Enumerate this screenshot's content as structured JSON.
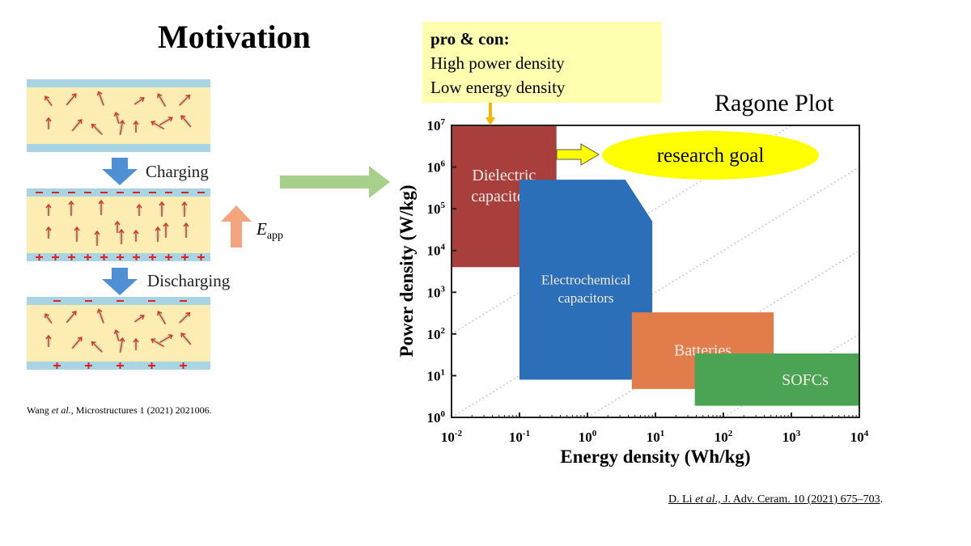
{
  "slide": {
    "title": "Motivation",
    "procon": {
      "heading": "pro & con:",
      "line1": "High power density",
      "line2": "Low energy density"
    },
    "chart_heading": "Ragone Plot",
    "research_goal": "research goal",
    "citation_left": {
      "authors": "Wang ",
      "etal": "et al.",
      "rest": ", Microstructures  1 (2021) 2021006."
    },
    "citation_right": {
      "authors": "D. Li ",
      "etal": "et al",
      "rest": "., J. Adv. Ceram. 10 (2021) 675–703",
      "end": "."
    }
  },
  "schematic": {
    "charging_label": "Charging",
    "discharging_label": "Discharging",
    "field_label": "E",
    "field_subscript": "app",
    "colors": {
      "electrode": "#a9d4e4",
      "dielectric": "#fdedb3",
      "dipole": "#d23a2a",
      "process_arrow": "#4f8fd6",
      "field_arrow": "#f4a57e",
      "charge": "#e02020"
    }
  },
  "chart_data": {
    "type": "area",
    "xlabel": "Energy density (Wh/kg)",
    "ylabel": "Power density (W/kg)",
    "xscale": "log",
    "yscale": "log",
    "xlim": [
      0.01,
      10000
    ],
    "ylim": [
      1,
      10000000
    ],
    "xticks": [
      {
        "base": "10",
        "exp": "-2"
      },
      {
        "base": "10",
        "exp": "-1"
      },
      {
        "base": "10",
        "exp": "0"
      },
      {
        "base": "10",
        "exp": "1"
      },
      {
        "base": "10",
        "exp": "2"
      },
      {
        "base": "10",
        "exp": "3"
      },
      {
        "base": "10",
        "exp": "4"
      }
    ],
    "yticks": [
      {
        "base": "10",
        "exp": "0"
      },
      {
        "base": "10",
        "exp": "1"
      },
      {
        "base": "10",
        "exp": "2"
      },
      {
        "base": "10",
        "exp": "3"
      },
      {
        "base": "10",
        "exp": "4"
      },
      {
        "base": "10",
        "exp": "5"
      },
      {
        "base": "10",
        "exp": "6"
      },
      {
        "base": "10",
        "exp": "7"
      }
    ],
    "grid": false,
    "reference_lines_power_to_energy": [
      10000,
      100,
      1,
      0.01
    ],
    "regions": [
      {
        "name": "Dielectric",
        "name2": "capacitors",
        "color": "#a83f3c",
        "polygon": [
          [
            0.01,
            10000000
          ],
          [
            0.35,
            10000000
          ],
          [
            0.35,
            4000
          ],
          [
            0.01,
            4000
          ]
        ]
      },
      {
        "name": "Electrochemical",
        "name2": "capacitors",
        "color": "#2a6fb8",
        "polygon": [
          [
            0.1,
            500000
          ],
          [
            3.6,
            500000
          ],
          [
            9,
            50000
          ],
          [
            9,
            8
          ],
          [
            0.1,
            8
          ]
        ]
      },
      {
        "name": "Batteries",
        "name2": "",
        "color": "#e27c4a",
        "polygon": [
          [
            4.5,
            330
          ],
          [
            550,
            330
          ],
          [
            550,
            4.8
          ],
          [
            4.5,
            4.8
          ]
        ]
      },
      {
        "name": "SOFCs",
        "name2": "",
        "color": "#4aa453",
        "polygon": [
          [
            38,
            34
          ],
          [
            10000,
            34
          ],
          [
            10000,
            1.9
          ],
          [
            38,
            1.9
          ]
        ]
      }
    ]
  }
}
